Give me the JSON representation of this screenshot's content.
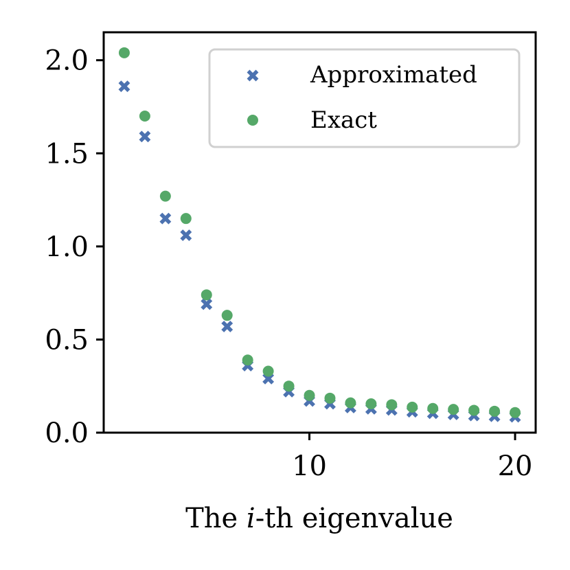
{
  "chart_data": {
    "type": "scatter",
    "xlabel_prefix": "The ",
    "xlabel_var": "i",
    "xlabel_suffix": "-th eigenvalue",
    "ylabel": "",
    "xlim": [
      0,
      21
    ],
    "ylim": [
      0.0,
      2.15
    ],
    "xticks": [
      10,
      20
    ],
    "xtick_labels": [
      "10",
      "20"
    ],
    "yticks": [
      0.0,
      0.5,
      1.0,
      1.5,
      2.0
    ],
    "ytick_labels": [
      "0.0",
      "0.5",
      "1.0",
      "1.5",
      "2.0"
    ],
    "legend_position": "top-right",
    "x": [
      1,
      2,
      3,
      4,
      5,
      6,
      7,
      8,
      9,
      10,
      11,
      12,
      13,
      14,
      15,
      16,
      17,
      18,
      19,
      20
    ],
    "series": [
      {
        "name": "Approximated",
        "marker": "x",
        "color": "#4c72b0",
        "values": [
          1.86,
          1.59,
          1.15,
          1.06,
          0.69,
          0.57,
          0.36,
          0.29,
          0.22,
          0.17,
          0.155,
          0.135,
          0.128,
          0.122,
          0.112,
          0.104,
          0.098,
          0.092,
          0.088,
          0.085
        ]
      },
      {
        "name": "Exact",
        "marker": "o",
        "color": "#55a868",
        "values": [
          2.04,
          1.7,
          1.27,
          1.15,
          0.74,
          0.63,
          0.39,
          0.33,
          0.25,
          0.2,
          0.185,
          0.16,
          0.155,
          0.15,
          0.137,
          0.13,
          0.125,
          0.12,
          0.115,
          0.108
        ]
      }
    ]
  }
}
